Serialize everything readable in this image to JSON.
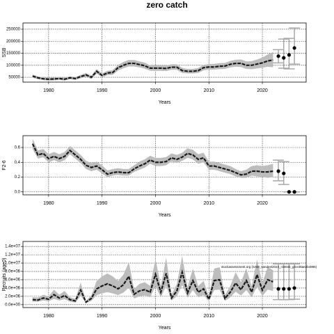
{
  "chart_data": [
    {
      "type": "line",
      "title": "zero catch",
      "xlabel": "Years",
      "ylabel": "SSB",
      "xlim": [
        1975.2,
        2028.2
      ],
      "xticks": [
        1980,
        1990,
        2000,
        2010,
        2020
      ],
      "ylim": [
        30000,
        276000
      ],
      "yticks": [
        50000,
        100000,
        150000,
        200000,
        250000
      ],
      "grid": true,
      "color": "#1a1a1a",
      "band_color": "#bdbdbd",
      "bar_color": "#a8a8a8",
      "x": [
        1977,
        1978,
        1979,
        1980,
        1981,
        1982,
        1983,
        1984,
        1985,
        1986,
        1987,
        1988,
        1989,
        1990,
        1991,
        1992,
        1993,
        1994,
        1995,
        1996,
        1997,
        1998,
        1999,
        2000,
        2001,
        2002,
        2003,
        2004,
        2005,
        2006,
        2007,
        2008,
        2009,
        2010,
        2011,
        2012,
        2013,
        2014,
        2015,
        2016,
        2017,
        2018,
        2019,
        2020,
        2021,
        2022
      ],
      "values": [
        55000,
        48000,
        44000,
        42000,
        43000,
        45000,
        42000,
        48000,
        45000,
        53000,
        60000,
        50000,
        75000,
        58000,
        68000,
        70000,
        90000,
        100000,
        108000,
        108000,
        103000,
        98000,
        88000,
        88000,
        88000,
        87000,
        92000,
        92000,
        78000,
        75000,
        75000,
        78000,
        90000,
        93000,
        93000,
        96000,
        97000,
        104000,
        108000,
        108000,
        100000,
        100000,
        105000,
        110000,
        118000,
        122000
      ],
      "lower": [
        48000,
        42000,
        38000,
        36000,
        37000,
        39000,
        36000,
        42000,
        39000,
        46000,
        52000,
        43000,
        65000,
        50000,
        59000,
        60000,
        78000,
        88000,
        95000,
        95000,
        91000,
        86000,
        77000,
        77000,
        77000,
        76000,
        81000,
        81000,
        68000,
        66000,
        66000,
        68000,
        79000,
        82000,
        82000,
        84000,
        85000,
        91000,
        94000,
        93000,
        85000,
        84000,
        87000,
        90000,
        94000,
        92000
      ],
      "upper": [
        62000,
        54000,
        50000,
        48000,
        49000,
        51000,
        48000,
        54000,
        51000,
        60000,
        68000,
        57000,
        85000,
        66000,
        77000,
        80000,
        102000,
        114000,
        122000,
        122000,
        116000,
        111000,
        100000,
        100000,
        100000,
        99000,
        104000,
        104000,
        89000,
        85000,
        85000,
        89000,
        102000,
        105000,
        106000,
        109000,
        110000,
        118000,
        123000,
        124000,
        116000,
        117000,
        124000,
        132000,
        145000,
        155000
      ],
      "projection": {
        "x": [
          2023,
          2024,
          2025,
          2026
        ],
        "values": [
          138000,
          131000,
          143000,
          172000
        ],
        "lower": [
          110000,
          88000,
          85000,
          105000
        ],
        "upper": [
          165000,
          209000,
          212000,
          255000
        ]
      }
    },
    {
      "type": "line",
      "xlabel": "Years",
      "ylabel": "F2-6",
      "xlim": [
        1975.2,
        2028.2
      ],
      "xticks": [
        1980,
        1990,
        2000,
        2010,
        2020
      ],
      "ylim": [
        -0.04,
        0.76
      ],
      "yticks": [
        {
          "value": 0,
          "label": "0.0"
        },
        0.2,
        0.4,
        0.6
      ],
      "grid": true,
      "color": "#1a1a1a",
      "band_color": "#bdbdbd",
      "bar_color": "#a8a8a8",
      "x": [
        1977,
        1978,
        1979,
        1980,
        1981,
        1982,
        1983,
        1984,
        1985,
        1986,
        1987,
        1988,
        1989,
        1990,
        1991,
        1992,
        1993,
        1994,
        1995,
        1996,
        1997,
        1998,
        1999,
        2000,
        2001,
        2002,
        2003,
        2004,
        2005,
        2006,
        2007,
        2008,
        2009,
        2010,
        2011,
        2012,
        2013,
        2014,
        2015,
        2016,
        2017,
        2018,
        2019,
        2020,
        2021,
        2022
      ],
      "values": [
        0.65,
        0.5,
        0.52,
        0.45,
        0.48,
        0.45,
        0.48,
        0.56,
        0.5,
        0.44,
        0.36,
        0.33,
        0.35,
        0.3,
        0.24,
        0.26,
        0.27,
        0.26,
        0.26,
        0.31,
        0.35,
        0.38,
        0.43,
        0.4,
        0.4,
        0.41,
        0.46,
        0.44,
        0.47,
        0.52,
        0.5,
        0.44,
        0.46,
        0.35,
        0.35,
        0.33,
        0.31,
        0.29,
        0.26,
        0.23,
        0.24,
        0.28,
        0.28,
        0.27,
        0.27,
        0.28
      ],
      "lower": [
        0.58,
        0.45,
        0.47,
        0.4,
        0.43,
        0.4,
        0.43,
        0.51,
        0.45,
        0.39,
        0.31,
        0.28,
        0.3,
        0.25,
        0.2,
        0.22,
        0.23,
        0.22,
        0.22,
        0.27,
        0.3,
        0.33,
        0.38,
        0.35,
        0.35,
        0.36,
        0.41,
        0.39,
        0.42,
        0.46,
        0.44,
        0.38,
        0.4,
        0.3,
        0.3,
        0.28,
        0.26,
        0.24,
        0.21,
        0.19,
        0.19,
        0.22,
        0.21,
        0.2,
        0.19,
        0.2
      ],
      "upper": [
        0.72,
        0.56,
        0.58,
        0.51,
        0.54,
        0.51,
        0.54,
        0.62,
        0.56,
        0.5,
        0.42,
        0.39,
        0.41,
        0.36,
        0.29,
        0.31,
        0.32,
        0.31,
        0.31,
        0.36,
        0.41,
        0.44,
        0.49,
        0.46,
        0.46,
        0.47,
        0.52,
        0.5,
        0.53,
        0.59,
        0.57,
        0.51,
        0.53,
        0.41,
        0.41,
        0.39,
        0.37,
        0.35,
        0.31,
        0.28,
        0.3,
        0.35,
        0.36,
        0.35,
        0.36,
        0.38
      ],
      "projection": {
        "x": [
          2023,
          2024,
          2025,
          2026
        ],
        "values": [
          0.28,
          0.25,
          0,
          0
        ],
        "lower": [
          0.15,
          0.1,
          0,
          0
        ],
        "upper": [
          0.43,
          0.41,
          0,
          0
        ]
      }
    },
    {
      "type": "line",
      "xlabel": "Years",
      "ylabel": "Recruits (age0)",
      "annotation": "stockassessment.org (SAM_sandeel2024_r16032_git:e38ae2b4986)",
      "xlim": [
        1975.2,
        2028.2
      ],
      "xticks": [
        1980,
        1990,
        2000,
        2010,
        2020
      ],
      "ylim": [
        -700000,
        15200000
      ],
      "yticks": [
        {
          "value": 0,
          "label": "0.0e+00"
        },
        {
          "value": 2000000,
          "label": "2.0e+06"
        },
        {
          "value": 4000000,
          "label": "4.0e+06"
        },
        {
          "value": 6000000,
          "label": "6.0e+06"
        },
        {
          "value": 8000000,
          "label": "8.0e+06"
        },
        {
          "value": 10000000,
          "label": "1.0e+07"
        },
        {
          "value": 12000000,
          "label": "1.2e+07"
        },
        {
          "value": 14000000,
          "label": "1.4e+07"
        }
      ],
      "grid": true,
      "color": "#1a1a1a",
      "band_color": "#bdbdbd",
      "bar_color": "#a8a8a8",
      "x": [
        1977,
        1978,
        1979,
        1980,
        1981,
        1982,
        1983,
        1984,
        1985,
        1986,
        1987,
        1988,
        1989,
        1990,
        1991,
        1992,
        1993,
        1994,
        1995,
        1996,
        1997,
        1998,
        1999,
        2000,
        2001,
        2002,
        2003,
        2004,
        2005,
        2006,
        2007,
        2008,
        2009,
        2010,
        2011,
        2012,
        2013,
        2014,
        2015,
        2016,
        2017,
        2018,
        2019,
        2020,
        2021,
        2022
      ],
      "values": [
        1200000,
        1100000,
        1600000,
        1300000,
        2400000,
        1600000,
        2200000,
        1200000,
        900000,
        3500000,
        600000,
        1500000,
        3800000,
        4500000,
        5000000,
        4500000,
        3800000,
        4800000,
        6800000,
        2500000,
        3300000,
        3600000,
        3000000,
        7300000,
        3000000,
        7500000,
        1600000,
        3300000,
        7800000,
        2800000,
        5800000,
        3000000,
        3800000,
        1300000,
        5800000,
        6000000,
        1500000,
        3000000,
        5200000,
        3600000,
        5800000,
        3000000,
        7200000,
        3500000,
        6000000,
        5500000
      ],
      "lower": [
        700000,
        700000,
        1000000,
        800000,
        1400000,
        1000000,
        1300000,
        700000,
        500000,
        2100000,
        400000,
        900000,
        2300000,
        2700000,
        3000000,
        2700000,
        2300000,
        2900000,
        4100000,
        1500000,
        2000000,
        2200000,
        1800000,
        4400000,
        1800000,
        4500000,
        1000000,
        2000000,
        4700000,
        1700000,
        3500000,
        1800000,
        2300000,
        800000,
        3500000,
        3600000,
        900000,
        1800000,
        3100000,
        2200000,
        3500000,
        1800000,
        4300000,
        2100000,
        3600000,
        3300000
      ],
      "upper": [
        1800000,
        1700000,
        2400000,
        2000000,
        3600000,
        2400000,
        3300000,
        1800000,
        1400000,
        5300000,
        900000,
        2300000,
        5700000,
        6800000,
        7500000,
        6800000,
        5700000,
        7200000,
        10200000,
        3800000,
        5000000,
        5400000,
        4500000,
        11000000,
        4500000,
        11300000,
        2400000,
        5000000,
        11700000,
        4200000,
        8700000,
        4500000,
        5700000,
        2000000,
        8700000,
        9000000,
        2300000,
        4500000,
        7800000,
        5400000,
        8700000,
        4500000,
        10800000,
        5300000,
        9000000,
        8300000
      ],
      "projection": {
        "x": [
          2023,
          2024,
          2025,
          2026
        ],
        "values": [
          3800000,
          3800000,
          3800000,
          4000000
        ],
        "lower": [
          1200000,
          1200000,
          1200000,
          1300000
        ],
        "upper": [
          9800000,
          9800000,
          9800000,
          9800000
        ]
      }
    }
  ]
}
